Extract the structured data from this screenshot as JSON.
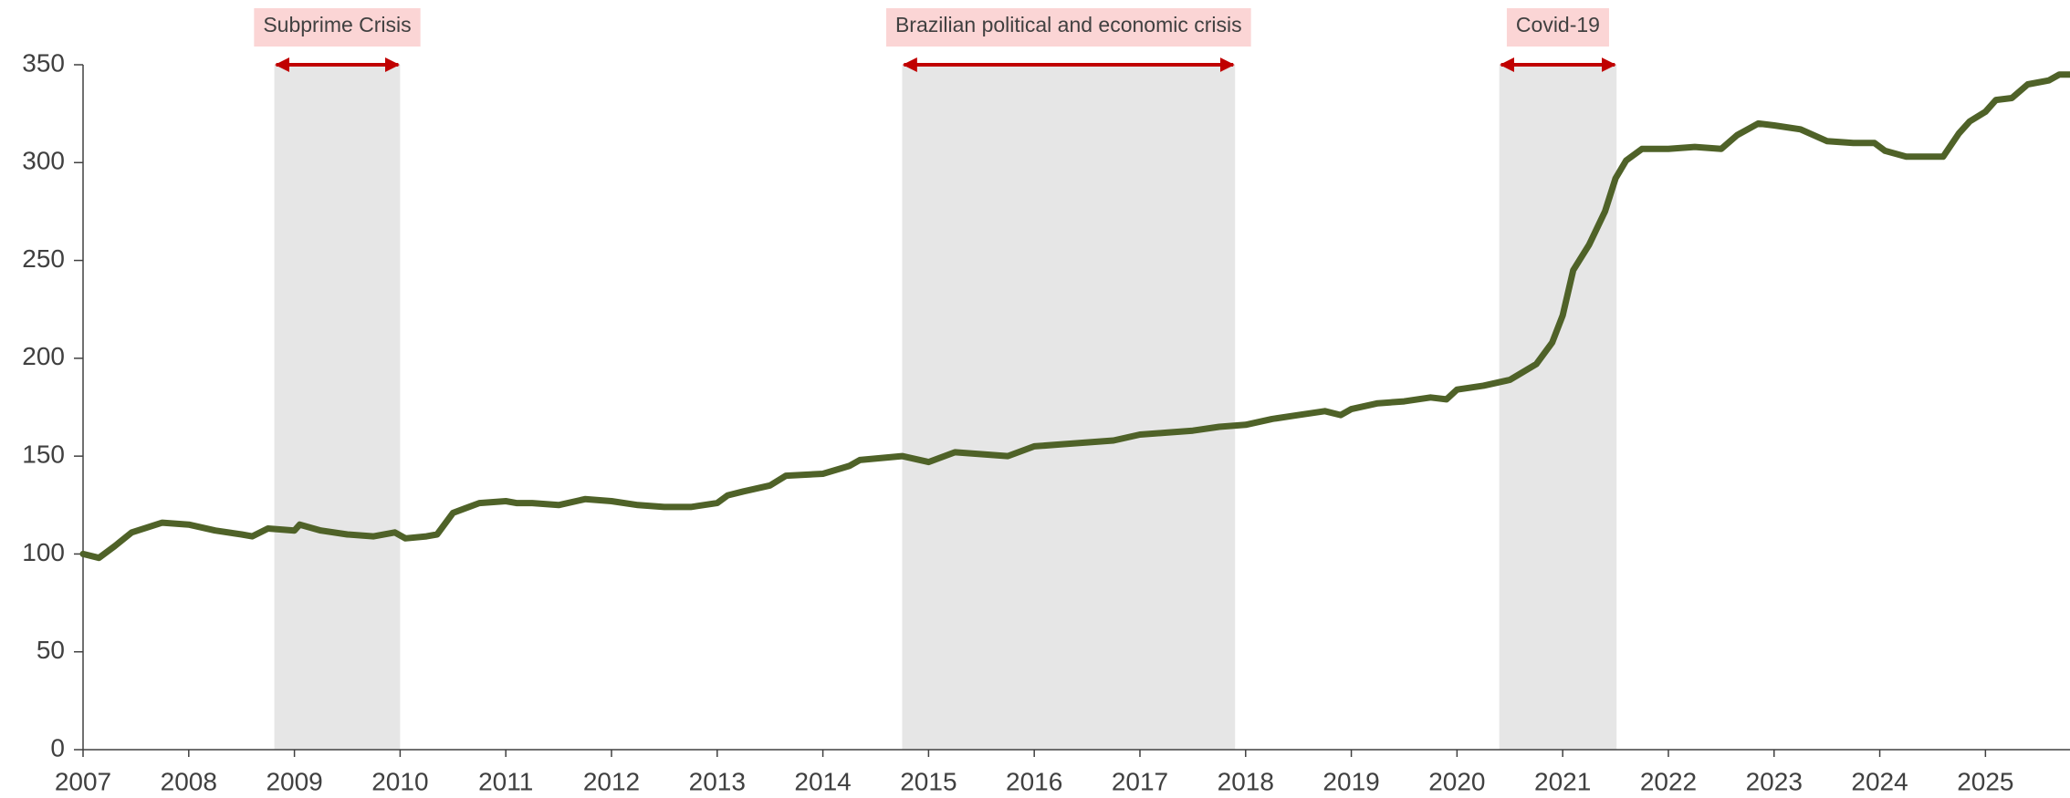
{
  "chart_data": {
    "type": "line",
    "x": [
      2007.0,
      2007.15,
      2007.3,
      2007.46,
      2007.75,
      2008.0,
      2008.25,
      2008.5,
      2008.6,
      2008.75,
      2009.0,
      2009.05,
      2009.25,
      2009.5,
      2009.75,
      2009.95,
      2010.05,
      2010.25,
      2010.35,
      2010.5,
      2010.75,
      2011.0,
      2011.1,
      2011.25,
      2011.5,
      2011.75,
      2012.0,
      2012.25,
      2012.5,
      2012.75,
      2013.0,
      2013.1,
      2013.25,
      2013.5,
      2013.65,
      2014.0,
      2014.25,
      2014.35,
      2014.75,
      2015.0,
      2015.25,
      2015.5,
      2015.75,
      2016.0,
      2016.25,
      2016.5,
      2016.75,
      2017.0,
      2017.25,
      2017.5,
      2017.75,
      2018.0,
      2018.25,
      2018.5,
      2018.75,
      2018.9,
      2019.0,
      2019.25,
      2019.5,
      2019.75,
      2019.9,
      2020.0,
      2020.25,
      2020.5,
      2020.75,
      2020.9,
      2021.0,
      2021.1,
      2021.25,
      2021.4,
      2021.5,
      2021.6,
      2021.75,
      2022.0,
      2022.25,
      2022.5,
      2022.65,
      2022.85,
      2023.0,
      2023.25,
      2023.5,
      2023.75,
      2023.95,
      2024.05,
      2024.25,
      2024.5,
      2024.6,
      2024.75,
      2024.85,
      2025.0,
      2025.1,
      2025.25,
      2025.4,
      2025.6,
      2025.7,
      2025.8
    ],
    "series": [
      {
        "color": "#4f6228",
        "values": [
          100,
          98,
          104,
          111,
          116,
          115,
          112,
          110,
          109,
          113,
          112,
          115,
          112,
          110,
          109,
          111,
          108,
          109,
          110,
          121,
          126,
          127,
          126,
          126,
          125,
          128,
          127,
          125,
          124,
          124,
          126,
          130,
          132,
          135,
          140,
          141,
          145,
          148,
          150,
          147,
          152,
          151,
          150,
          155,
          156,
          157,
          158,
          161,
          162,
          163,
          165,
          166,
          169,
          171,
          173,
          171,
          174,
          177,
          178,
          180,
          179,
          184,
          186,
          189,
          197,
          208,
          222,
          245,
          258,
          275,
          292,
          301,
          307,
          307,
          308,
          307,
          314,
          320,
          319,
          317,
          311,
          310,
          310,
          306,
          303,
          303,
          303,
          315,
          321,
          326,
          332,
          333,
          340,
          342,
          345,
          345
        ]
      }
    ],
    "xlim": [
      2007,
      2025.8
    ],
    "xticks": [
      2007,
      2008,
      2009,
      2010,
      2011,
      2012,
      2013,
      2014,
      2015,
      2016,
      2017,
      2018,
      2019,
      2020,
      2021,
      2022,
      2023,
      2024,
      2025
    ],
    "ylim": [
      0,
      350
    ],
    "yticks": [
      0,
      50,
      100,
      150,
      200,
      250,
      300,
      350
    ],
    "annotations": [
      {
        "label": "Subprime Crisis",
        "start": 2008.81,
        "end": 2010.0
      },
      {
        "label": "Brazilian political and economic crisis",
        "start": 2014.75,
        "end": 2017.9
      },
      {
        "label": "Covid-19",
        "start": 2020.4,
        "end": 2021.51
      }
    ]
  }
}
